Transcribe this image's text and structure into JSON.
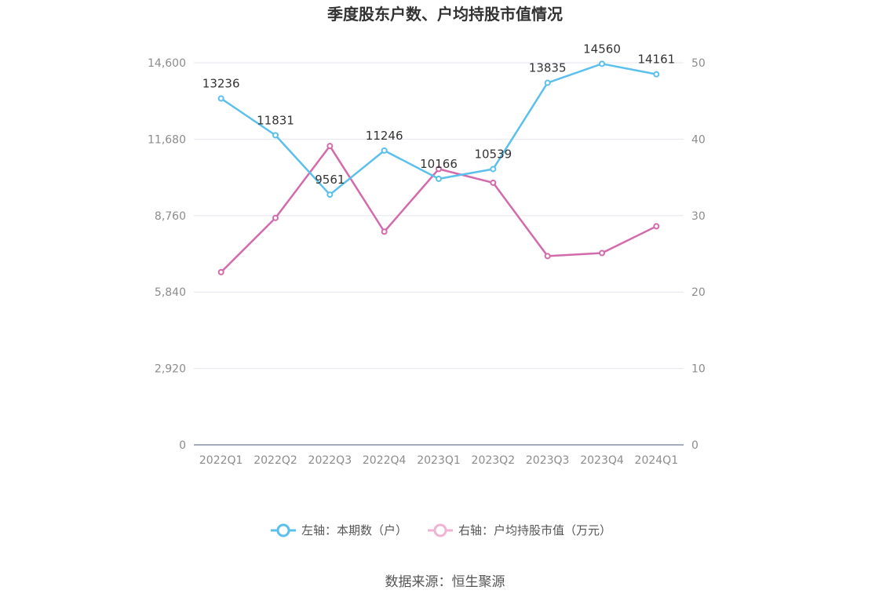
{
  "chart_data": {
    "type": "line",
    "title": "季度股东户数、户均持股市值情况",
    "categories": [
      "2022Q1",
      "2022Q2",
      "2022Q3",
      "2022Q4",
      "2023Q1",
      "2023Q2",
      "2023Q3",
      "2023Q4",
      "2024Q1"
    ],
    "series": [
      {
        "name": "左轴：本期数（户）",
        "axis": "left",
        "color": "#5bc0eb",
        "values": [
          13236,
          11831,
          9561,
          11246,
          10166,
          10539,
          13835,
          14560,
          14161
        ],
        "data_labels": [
          "13236",
          "11831",
          "9561",
          "11246",
          "10166",
          "10539",
          "13835",
          "14560",
          "14161"
        ]
      },
      {
        "name": "右轴：户均持股市值（万元）",
        "axis": "right",
        "color": "#d36aab",
        "values": [
          22.6,
          29.7,
          39.1,
          27.9,
          36.1,
          34.3,
          24.7,
          25.1,
          28.6
        ]
      }
    ],
    "left_axis": {
      "ylim": [
        0,
        14600
      ],
      "ticks": [
        "0",
        "2,920",
        "5,840",
        "8,760",
        "11,680",
        "14,600"
      ]
    },
    "right_axis": {
      "ylim": [
        0,
        50
      ],
      "ticks": [
        "0",
        "10",
        "20",
        "30",
        "40",
        "50"
      ]
    },
    "grid": true,
    "legend_position": "bottom-center"
  },
  "source_text": "数据来源：恒生聚源"
}
